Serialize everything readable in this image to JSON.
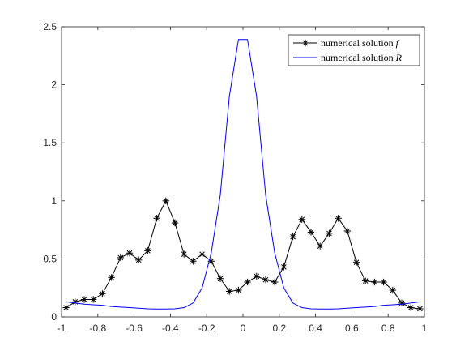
{
  "chart_data": {
    "type": "line",
    "title": "",
    "xlabel": "",
    "ylabel": "",
    "xlim": [
      -1,
      1
    ],
    "ylim": [
      0,
      2.5
    ],
    "xticks": [
      "-1",
      "-0.8",
      "-0.6",
      "-0.4",
      "-0.2",
      "0",
      "0.2",
      "0.4",
      "0.6",
      "0.8",
      "1"
    ],
    "yticks": [
      "0",
      "0.5",
      "1",
      "1.5",
      "2",
      "2.5"
    ],
    "grid": false,
    "legend_position": "top-right",
    "series": [
      {
        "name": "numerical solution ",
        "name_math": "f",
        "color": "#000000",
        "marker": "asterisk",
        "x": [
          -0.975,
          -0.925,
          -0.875,
          -0.825,
          -0.775,
          -0.725,
          -0.675,
          -0.625,
          -0.575,
          -0.525,
          -0.475,
          -0.425,
          -0.375,
          -0.325,
          -0.275,
          -0.225,
          -0.175,
          -0.125,
          -0.075,
          -0.025,
          0.025,
          0.075,
          0.125,
          0.175,
          0.225,
          0.275,
          0.325,
          0.375,
          0.425,
          0.475,
          0.525,
          0.575,
          0.625,
          0.675,
          0.725,
          0.775,
          0.825,
          0.875,
          0.925,
          0.975
        ],
        "y": [
          0.08,
          0.13,
          0.15,
          0.15,
          0.2,
          0.34,
          0.51,
          0.55,
          0.49,
          0.57,
          0.85,
          1.0,
          0.81,
          0.54,
          0.48,
          0.54,
          0.48,
          0.33,
          0.22,
          0.23,
          0.3,
          0.35,
          0.32,
          0.3,
          0.43,
          0.69,
          0.84,
          0.73,
          0.61,
          0.72,
          0.85,
          0.74,
          0.47,
          0.31,
          0.3,
          0.3,
          0.23,
          0.12,
          0.08,
          0.07
        ]
      },
      {
        "name": "numerical solution ",
        "name_math": "R",
        "color": "#0000ff",
        "marker": "none",
        "x": [
          -0.975,
          -0.925,
          -0.875,
          -0.825,
          -0.775,
          -0.725,
          -0.675,
          -0.625,
          -0.575,
          -0.525,
          -0.475,
          -0.425,
          -0.375,
          -0.325,
          -0.275,
          -0.225,
          -0.175,
          -0.125,
          -0.075,
          -0.025,
          0.025,
          0.075,
          0.125,
          0.175,
          0.225,
          0.275,
          0.325,
          0.375,
          0.425,
          0.475,
          0.525,
          0.575,
          0.625,
          0.675,
          0.725,
          0.775,
          0.825,
          0.875,
          0.925,
          0.975
        ],
        "y": [
          0.13,
          0.12,
          0.11,
          0.105,
          0.1,
          0.09,
          0.085,
          0.08,
          0.075,
          0.07,
          0.068,
          0.068,
          0.07,
          0.08,
          0.12,
          0.25,
          0.55,
          1.05,
          1.9,
          2.39,
          2.39,
          1.9,
          1.05,
          0.55,
          0.25,
          0.12,
          0.08,
          0.07,
          0.068,
          0.068,
          0.07,
          0.075,
          0.08,
          0.085,
          0.09,
          0.1,
          0.105,
          0.11,
          0.12,
          0.13
        ]
      }
    ]
  }
}
